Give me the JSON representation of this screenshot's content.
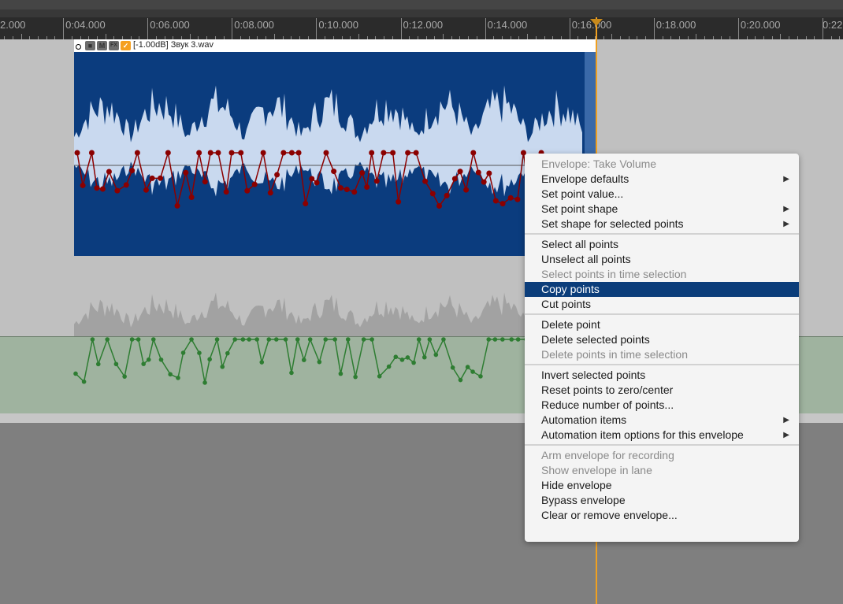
{
  "ruler": {
    "labels": [
      "2.000",
      "0:04.000",
      "0:06.000",
      "0:08.000",
      "0:10.000",
      "0:12.000",
      "0:14.000",
      "0:16.000",
      "0:18.000",
      "0:20.000",
      "0:22"
    ]
  },
  "item": {
    "title": "[-1.00dB] Звук 3.wav",
    "buttons": {
      "lock": "lock-icon",
      "mute": "M",
      "fx": "FX",
      "envelope": "envelope-icon"
    }
  },
  "colors": {
    "item_bg": "#0b3c7e",
    "waveform": "#c9d9ef",
    "take_envelope": "#8b0000",
    "lane_envelope": "#2e7d32",
    "lane_bg": "#9fb39f",
    "playhead": "#f0a020",
    "menu_highlight": "#0b3d7a"
  },
  "menu": {
    "groups": [
      [
        {
          "label": "Envelope: Take Volume",
          "disabled": true
        },
        {
          "label": "Envelope defaults",
          "submenu": true
        },
        {
          "label": "Set point value..."
        },
        {
          "label": "Set point shape",
          "submenu": true
        },
        {
          "label": "Set shape for selected points",
          "submenu": true
        }
      ],
      [
        {
          "label": "Select all points"
        },
        {
          "label": "Unselect all points"
        },
        {
          "label": "Select points in time selection",
          "disabled": true
        },
        {
          "label": "Copy points",
          "highlighted": true
        },
        {
          "label": "Cut points"
        }
      ],
      [
        {
          "label": "Delete point"
        },
        {
          "label": "Delete selected points"
        },
        {
          "label": "Delete points in time selection",
          "disabled": true
        }
      ],
      [
        {
          "label": "Invert selected points"
        },
        {
          "label": "Reset points to zero/center"
        },
        {
          "label": "Reduce number of points..."
        },
        {
          "label": "Automation items",
          "submenu": true
        },
        {
          "label": "Automation item options for this envelope",
          "submenu": true
        }
      ],
      [
        {
          "label": "Arm envelope for recording",
          "disabled": true
        },
        {
          "label": "Show envelope in lane",
          "disabled": true
        },
        {
          "label": "Hide envelope"
        },
        {
          "label": "Bypass envelope"
        },
        {
          "label": "Clear or remove envelope..."
        }
      ]
    ]
  }
}
